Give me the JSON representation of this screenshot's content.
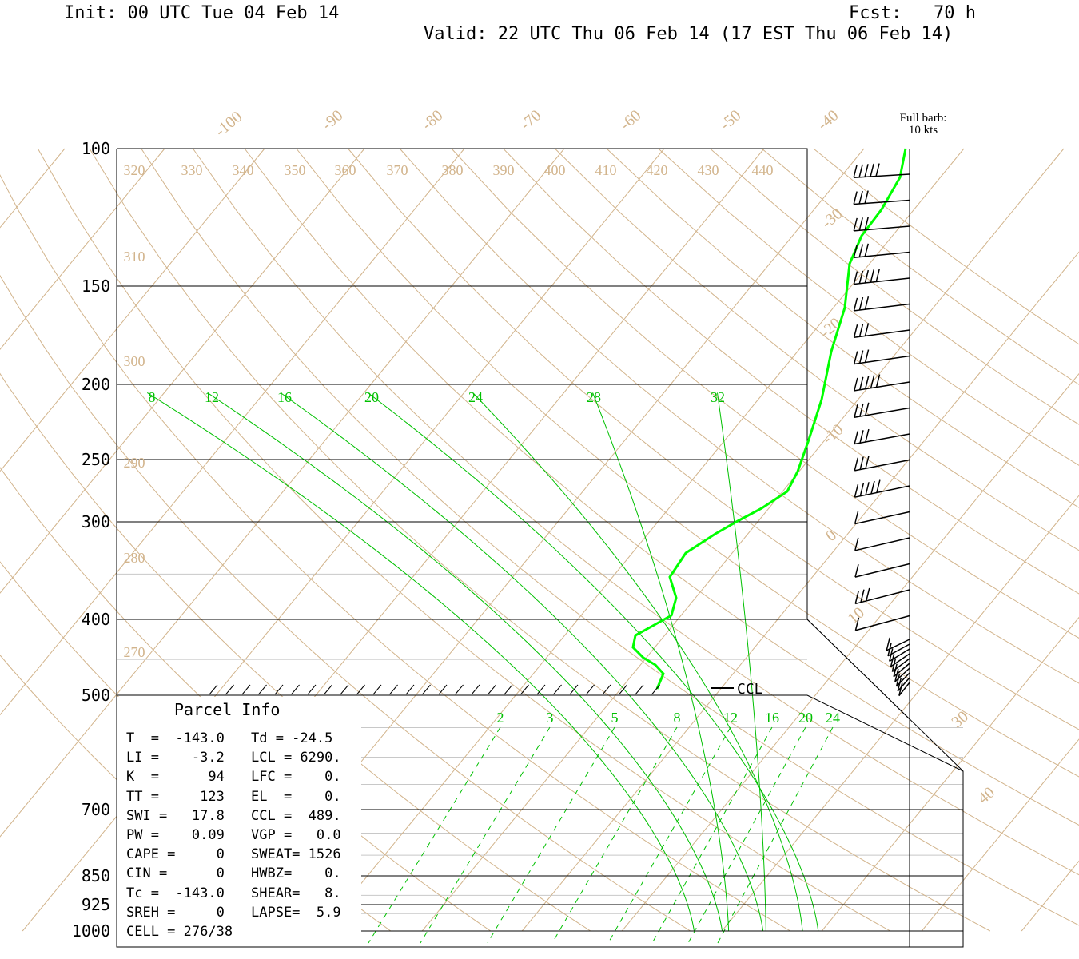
{
  "header": {
    "init": "Init: 00 UTC Tue 04 Feb 14",
    "fcst": "Fcst:   70 h",
    "valid": "Valid: 22 UTC Thu 06 Feb 14 (17 EST Thu 06 Feb 14)"
  },
  "barb_legend": {
    "line1": "Full barb:",
    "line2": "10 kts"
  },
  "ccl_label": "CCL",
  "parcel_info": {
    "title": "Parcel Info",
    "rows": [
      [
        "T  =  -143.0",
        "Td = -24.5"
      ],
      [
        "LI =    -3.2",
        "LCL = 6290."
      ],
      [
        "K  =      94",
        "LFC =    0."
      ],
      [
        "TT =     123",
        "EL  =    0."
      ],
      [
        "SWI =   17.8",
        "CCL =  489."
      ],
      [
        "PW =    0.09",
        "VGP =   0.0"
      ],
      [
        "CAPE =     0",
        "SWEAT= 1526"
      ],
      [
        "CIN =      0",
        "HWBZ=    0."
      ],
      [
        "Tc =  -143.0",
        "SHEAR=   8."
      ],
      [
        "SREH =     0",
        "LAPSE=  5.9"
      ],
      [
        "CELL = 276/38",
        ""
      ]
    ]
  },
  "colors": {
    "isotherm": "#d2b48c",
    "moist": "#00c000",
    "sounding": "#00ff00",
    "axes": "#000000",
    "isobar_light": "#c8c8c8"
  },
  "chart_data": {
    "type": "skew-t",
    "pressure_levels": [
      100,
      150,
      200,
      250,
      300,
      400,
      500,
      700,
      850,
      925,
      1000
    ],
    "pressure_labels": [
      "100",
      "150",
      "200",
      "250",
      "300",
      "400",
      "500",
      "700",
      "850",
      "925",
      "1000"
    ],
    "isotherm_labels": [
      "-100",
      "-90",
      "-80",
      "-70",
      "-60",
      "-50",
      "-40",
      "-30",
      "-20",
      "-10",
      "0",
      "10",
      "30",
      "40"
    ],
    "theta_labels": [
      "320",
      "330",
      "340",
      "350",
      "360",
      "370",
      "380",
      "390",
      "400",
      "410",
      "420",
      "430",
      "440",
      "310",
      "300",
      "290",
      "280",
      "270"
    ],
    "moist_labels": [
      "8",
      "12",
      "16",
      "20",
      "24",
      "28",
      "32"
    ],
    "mixing_labels": [
      "2",
      "3",
      "5",
      "8",
      "12",
      "16",
      "20",
      "24"
    ],
    "sounding_temperature": [
      {
        "p": 100,
        "t": -26
      },
      {
        "p": 130,
        "t": -28
      },
      {
        "p": 170,
        "t": -22
      },
      {
        "p": 220,
        "t": -14
      },
      {
        "p": 260,
        "t": -8
      },
      {
        "p": 300,
        "t": -11
      },
      {
        "p": 330,
        "t": -24
      },
      {
        "p": 360,
        "t": -31
      },
      {
        "p": 380,
        "t": -32
      },
      {
        "p": 400,
        "t": -34
      },
      {
        "p": 420,
        "t": -38
      },
      {
        "p": 450,
        "t": -38
      },
      {
        "p": 480,
        "t": -35
      },
      {
        "p": 500,
        "t": -36
      }
    ],
    "wind_barb_count": 28
  }
}
